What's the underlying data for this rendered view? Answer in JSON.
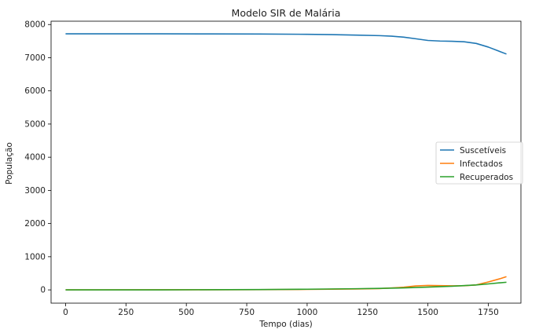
{
  "chart_data": {
    "type": "line",
    "title": "Modelo SIR de Malária",
    "xlabel": "Tempo (dias)",
    "ylabel": "População",
    "xlim": [
      -60,
      1885
    ],
    "ylim": [
      -400,
      8100
    ],
    "xticks": [
      0,
      250,
      500,
      750,
      1000,
      1250,
      1500,
      1750
    ],
    "yticks": [
      0,
      1000,
      2000,
      3000,
      4000,
      5000,
      6000,
      7000,
      8000
    ],
    "grid": false,
    "legend_position": "center-right",
    "series": [
      {
        "name": "Suscetíveis",
        "color": "#1f77b4",
        "x": [
          0,
          200,
          400,
          600,
          800,
          1000,
          1100,
          1200,
          1300,
          1350,
          1400,
          1450,
          1500,
          1550,
          1600,
          1650,
          1700,
          1750,
          1800,
          1825
        ],
        "y": [
          7720,
          7720,
          7719,
          7717,
          7713,
          7705,
          7695,
          7682,
          7665,
          7648,
          7620,
          7570,
          7520,
          7502,
          7495,
          7480,
          7430,
          7320,
          7180,
          7110
        ]
      },
      {
        "name": "Infectados",
        "color": "#ff7f0e",
        "x": [
          0,
          400,
          800,
          1000,
          1200,
          1300,
          1400,
          1450,
          1500,
          1550,
          1600,
          1650,
          1700,
          1750,
          1800,
          1825
        ],
        "y": [
          2,
          3,
          8,
          14,
          28,
          40,
          80,
          120,
          135,
          130,
          122,
          125,
          150,
          240,
          340,
          400
        ]
      },
      {
        "name": "Recuperados",
        "color": "#2ca02c",
        "x": [
          0,
          400,
          800,
          1000,
          1200,
          1300,
          1400,
          1500,
          1600,
          1700,
          1750,
          1800,
          1825
        ],
        "y": [
          0,
          2,
          10,
          20,
          35,
          45,
          60,
          85,
          110,
          150,
          180,
          215,
          230
        ]
      }
    ]
  }
}
